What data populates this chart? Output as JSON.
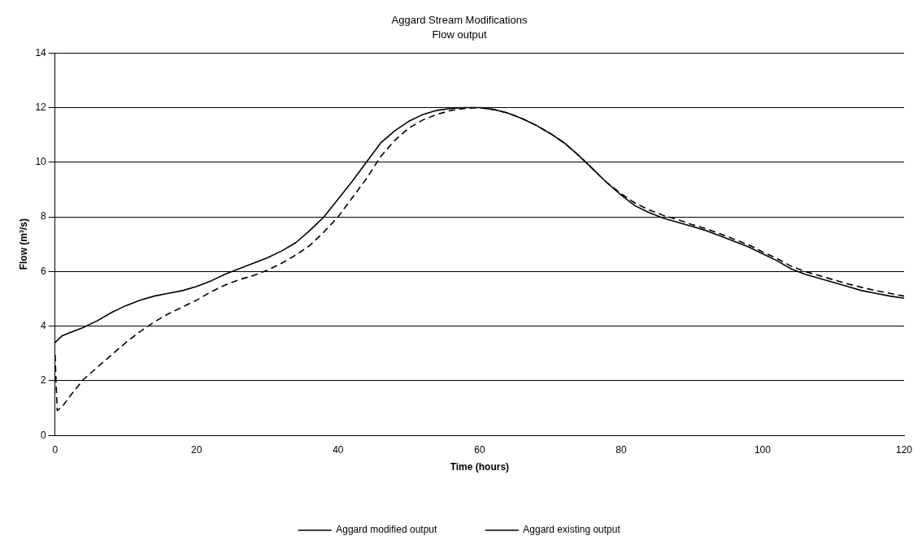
{
  "chart_data": {
    "type": "line",
    "title": "Aggard Stream Modifications",
    "subtitle": "Flow output",
    "xlabel": "Time (hours)",
    "ylabel": "Flow (m³/s)",
    "xlim": [
      0,
      120
    ],
    "xticks": [
      0,
      20,
      40,
      60,
      80,
      100,
      120
    ],
    "ylim": [
      0,
      14
    ],
    "yticks": [
      0,
      2,
      4,
      6,
      8,
      10,
      12,
      14
    ],
    "grid": "y",
    "legend": "bottom",
    "marker": "none",
    "series": [
      {
        "name": "Aggard modified output",
        "color": "#000000",
        "line_style": "solid",
        "x": [
          0,
          1,
          2,
          4,
          6,
          8,
          10,
          12,
          14,
          16,
          18,
          20,
          22,
          24,
          26,
          28,
          30,
          32,
          34,
          36,
          38,
          40,
          42,
          44,
          46,
          48,
          50,
          52,
          54,
          56,
          58,
          60,
          62,
          64,
          66,
          68,
          70,
          72,
          74,
          76,
          78,
          80,
          82,
          84,
          86,
          88,
          90,
          92,
          94,
          96,
          98,
          100,
          102,
          104,
          106,
          108,
          110,
          112,
          114,
          116,
          118,
          120
        ],
        "values": [
          3.4,
          3.65,
          3.75,
          3.95,
          4.2,
          4.5,
          4.75,
          4.95,
          5.1,
          5.2,
          5.3,
          5.45,
          5.65,
          5.9,
          6.1,
          6.3,
          6.5,
          6.75,
          7.05,
          7.5,
          8.0,
          8.65,
          9.3,
          10.0,
          10.7,
          11.15,
          11.5,
          11.75,
          11.9,
          11.97,
          12.0,
          12.0,
          11.93,
          11.8,
          11.6,
          11.35,
          11.05,
          10.7,
          10.25,
          9.75,
          9.25,
          8.8,
          8.4,
          8.15,
          7.95,
          7.8,
          7.65,
          7.5,
          7.3,
          7.1,
          6.9,
          6.65,
          6.4,
          6.1,
          5.9,
          5.75,
          5.6,
          5.45,
          5.3,
          5.2,
          5.1,
          5.02
        ]
      },
      {
        "name": "Aggard existing output",
        "color": "#000000",
        "line_style": "dashed",
        "x": [
          0,
          0.3,
          1,
          2,
          4,
          6,
          8,
          10,
          12,
          14,
          16,
          18,
          20,
          22,
          24,
          26,
          28,
          30,
          32,
          34,
          36,
          38,
          40,
          42,
          44,
          46,
          48,
          50,
          52,
          54,
          56,
          58,
          60,
          62,
          64,
          66,
          68,
          70,
          72,
          74,
          76,
          78,
          80,
          82,
          84,
          86,
          88,
          90,
          92,
          94,
          96,
          98,
          100,
          102,
          104,
          106,
          108,
          110,
          112,
          114,
          116,
          118,
          120
        ],
        "values": [
          2.95,
          0.91,
          1.05,
          1.4,
          2.05,
          2.5,
          2.95,
          3.4,
          3.8,
          4.15,
          4.45,
          4.7,
          4.95,
          5.25,
          5.5,
          5.7,
          5.85,
          6.05,
          6.3,
          6.6,
          6.95,
          7.45,
          8.0,
          8.7,
          9.4,
          10.2,
          10.8,
          11.25,
          11.55,
          11.75,
          11.9,
          11.97,
          12.0,
          11.93,
          11.8,
          11.6,
          11.35,
          11.05,
          10.7,
          10.25,
          9.75,
          9.25,
          8.85,
          8.5,
          8.25,
          8.05,
          7.9,
          7.72,
          7.57,
          7.38,
          7.18,
          6.98,
          6.72,
          6.48,
          6.2,
          6.0,
          5.85,
          5.7,
          5.55,
          5.42,
          5.3,
          5.2,
          5.1
        ]
      }
    ]
  }
}
